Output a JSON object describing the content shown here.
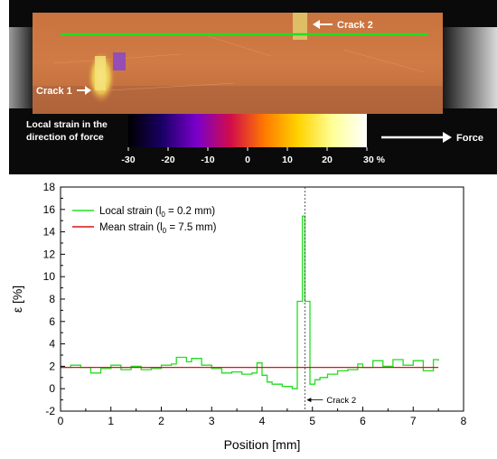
{
  "image": {
    "crack1_label": "Crack 1",
    "crack2_label": "Crack 2",
    "colorbar_title_line1": "Local strain in the",
    "colorbar_title_line2": "direction of force",
    "colorbar_ticks": [
      "-30",
      "-20",
      "-10",
      "0",
      "10",
      "20",
      "30 %"
    ],
    "force_label": "Force",
    "colors": {
      "background": "#000000",
      "specimen_orange": "#c9743e",
      "measurement_line": "#22dd22",
      "colorbar_stops": [
        "#000000",
        "#1a0066",
        "#7a00cc",
        "#d10c4a",
        "#ff7a00",
        "#ffd400",
        "#ffff99",
        "#ffffff"
      ]
    }
  },
  "chart_data": {
    "type": "line",
    "xlabel": "Position [mm]",
    "ylabel": "ε [%]",
    "xlim": [
      0,
      8
    ],
    "ylim": [
      -2,
      18
    ],
    "xticks": [
      "0",
      "1",
      "2",
      "3",
      "4",
      "5",
      "6",
      "7",
      "8"
    ],
    "yticks": [
      "-2",
      "0",
      "2",
      "4",
      "6",
      "8",
      "10",
      "12",
      "14",
      "16",
      "18"
    ],
    "grid": false,
    "legend_position": "top-left",
    "legend": [
      {
        "text": "Local strain (l",
        "sub": "0",
        "rest": " = 0.2 mm)",
        "color": "#22dd22"
      },
      {
        "text": "Mean strain (l",
        "sub": "0",
        "rest": " = 7.5 mm)",
        "color": "#dd1111"
      }
    ],
    "annotation": {
      "text": "Crack 2",
      "x": 4.85
    },
    "series": [
      {
        "name": "Local strain (l0 = 0.2 mm)",
        "style": "step",
        "color": "#22dd22",
        "x": [
          0.0,
          0.2,
          0.4,
          0.6,
          0.8,
          1.0,
          1.2,
          1.4,
          1.6,
          1.8,
          2.0,
          2.2,
          2.3,
          2.5,
          2.6,
          2.8,
          3.0,
          3.2,
          3.4,
          3.6,
          3.8,
          3.9,
          4.0,
          4.1,
          4.2,
          4.4,
          4.6,
          4.7,
          4.8,
          4.85,
          4.95,
          5.05,
          5.15,
          5.3,
          5.5,
          5.7,
          5.9,
          6.0,
          6.2,
          6.4,
          6.6,
          6.8,
          7.0,
          7.2,
          7.4,
          7.5
        ],
        "y": [
          1.9,
          2.1,
          1.9,
          1.4,
          1.8,
          2.1,
          1.7,
          2.0,
          1.7,
          1.8,
          2.1,
          2.2,
          2.8,
          2.4,
          2.7,
          2.1,
          1.8,
          1.4,
          1.5,
          1.3,
          1.4,
          2.3,
          1.2,
          0.6,
          0.4,
          0.2,
          0.0,
          7.8,
          15.4,
          7.8,
          0.4,
          0.8,
          1.0,
          1.3,
          1.6,
          1.7,
          2.2,
          1.9,
          2.5,
          2.0,
          2.6,
          2.1,
          2.5,
          1.6,
          2.6,
          2.5
        ]
      },
      {
        "name": "Mean strain (l0 = 7.5 mm)",
        "style": "line",
        "color": "#dd1111",
        "x": [
          0.0,
          7.5
        ],
        "y": [
          1.9,
          1.9
        ]
      }
    ]
  }
}
